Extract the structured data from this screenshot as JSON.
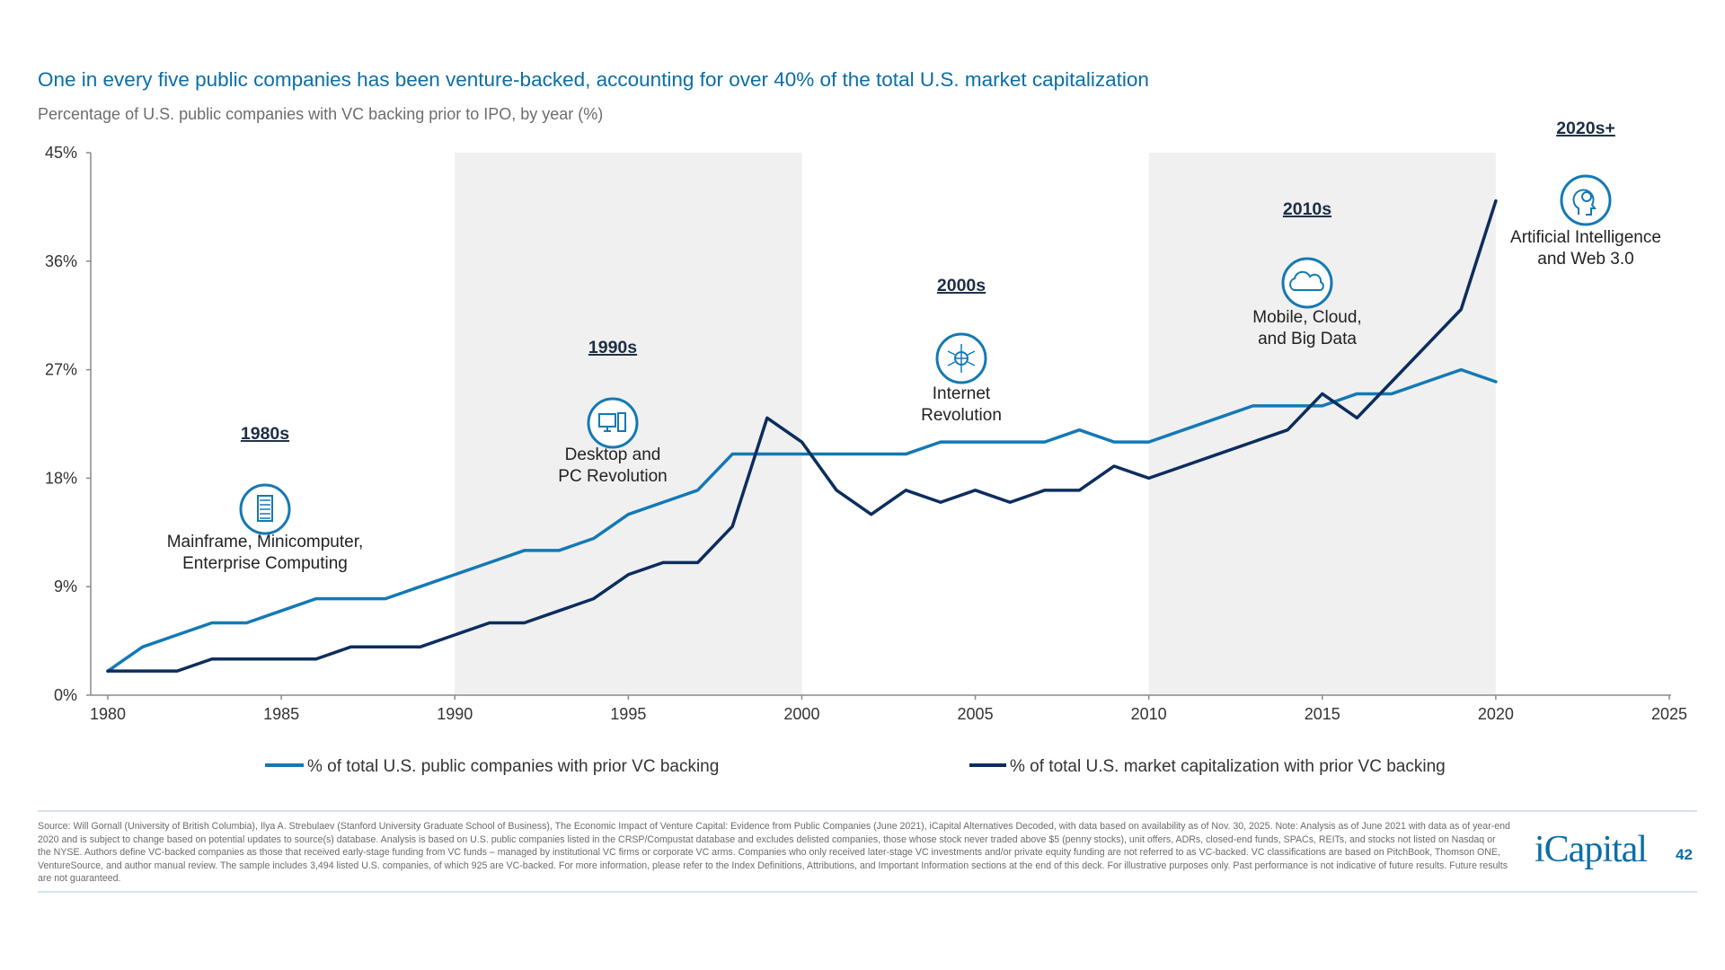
{
  "header": {
    "title": "One in every five public companies has been venture-backed, accounting for over 40% of the total U.S. market capitalization",
    "subtitle": "Percentage of U.S. public companies with VC backing prior to IPO, by year (%)"
  },
  "chart_data": {
    "type": "line",
    "x": [
      1980,
      1981,
      1982,
      1983,
      1984,
      1985,
      1986,
      1987,
      1988,
      1989,
      1990,
      1991,
      1992,
      1993,
      1994,
      1995,
      1996,
      1997,
      1998,
      1999,
      2000,
      2001,
      2002,
      2003,
      2004,
      2005,
      2006,
      2007,
      2008,
      2009,
      2010,
      2011,
      2012,
      2013,
      2014,
      2015,
      2016,
      2017,
      2018,
      2019,
      2020
    ],
    "series": [
      {
        "name": "% of total U.S. public companies with prior VC backing",
        "color": "#1479b4",
        "values": [
          2,
          4,
          5,
          6,
          6,
          7,
          8,
          8,
          8,
          9,
          10,
          11,
          12,
          12,
          13,
          15,
          16,
          17,
          20,
          20,
          20,
          20,
          20,
          20,
          21,
          21,
          21,
          21,
          22,
          21,
          21,
          22,
          23,
          24,
          24,
          24,
          25,
          25,
          26,
          27,
          26
        ]
      },
      {
        "name": "% of total U.S. market capitalization with prior VC backing",
        "color": "#0c2d5e",
        "values": [
          2,
          2,
          2,
          3,
          3,
          3,
          3,
          4,
          4,
          4,
          5,
          6,
          6,
          7,
          8,
          10,
          11,
          11,
          14,
          23,
          21,
          17,
          15,
          17,
          16,
          17,
          16,
          17,
          17,
          19,
          18,
          19,
          20,
          21,
          22,
          25,
          23,
          26,
          29,
          32,
          41
        ]
      }
    ],
    "xlim": [
      1980,
      2025
    ],
    "ylim": [
      0,
      45
    ],
    "x_ticks": [
      "1980",
      "1985",
      "1990",
      "1995",
      "2000",
      "2005",
      "2010",
      "2015",
      "2020",
      "2025"
    ],
    "y_ticks": [
      "0%",
      "9%",
      "18%",
      "27%",
      "36%",
      "45%"
    ],
    "shaded_ranges": [
      [
        1990,
        2000
      ],
      [
        2010,
        2020
      ]
    ],
    "shade_color": "#f0f0f0",
    "legend_position": "bottom",
    "grid": false,
    "annotations": [
      {
        "era": "1980s",
        "lines": [
          "Mainframe, Minicomputer,",
          "Enterprise Computing"
        ],
        "icon": "server-icon"
      },
      {
        "era": "1990s",
        "lines": [
          "Desktop and",
          "PC Revolution"
        ],
        "icon": "desktop-pc-icon"
      },
      {
        "era": "2000s",
        "lines": [
          "Internet",
          "Revolution"
        ],
        "icon": "globe-network-icon"
      },
      {
        "era": "2010s",
        "lines": [
          "Mobile, Cloud,",
          "and Big Data"
        ],
        "icon": "cloud-icon"
      },
      {
        "era": "2020s+",
        "lines": [
          "Artificial Intelligence",
          "and Web 3.0"
        ],
        "icon": "ai-head-gear-icon"
      }
    ]
  },
  "footer": {
    "source": "Source: Will Gornall (University of British Columbia), Ilya A. Strebulaev (Stanford University Graduate School of Business), The Economic Impact of Venture Capital: Evidence from Public Companies (June 2021), iCapital Alternatives Decoded, with data based on availability as of Nov. 30, 2025. Note: Analysis as of June 2021 with data as of year-end 2020 and is subject to change based on potential updates to source(s) database. Analysis is based on U.S. public companies listed in the CRSP/Compustat database and excludes delisted companies, those whose stock never traded above $5 (penny stocks), unit offers, ADRs, closed-end funds, SPACs, REITs, and stocks not listed on Nasdaq or the NYSE. Authors define VC-backed companies as those that received early-stage funding from VC funds – managed by institutional VC firms or corporate VC arms. Companies who only received later-stage VC investments and/or private equity funding are not referred to as VC-backed. VC classifications are based on PitchBook, Thomson ONE, VentureSource, and author manual review. The sample includes 3,494 listed U.S. companies, of which 925 are VC-backed. For more information, please refer to the Index Definitions, Attributions, and Important Information sections at the end of this deck. For illustrative purposes only. Past performance is not indicative of future results. Future results are not guaranteed.",
    "logo": "iCapital",
    "page_number": "42"
  }
}
